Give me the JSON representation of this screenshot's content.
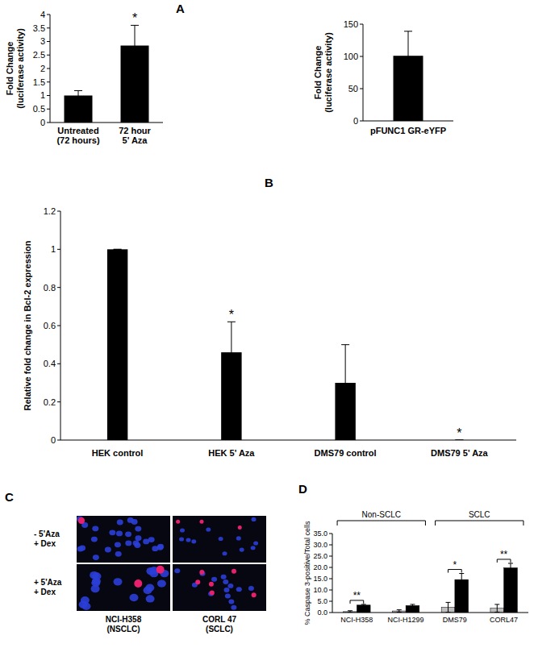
{
  "panel_labels": [
    "A",
    "B",
    "C",
    "D"
  ],
  "chart_data": [
    {
      "type": "bar",
      "categories": [
        "Untreated\n(72 hours)",
        "72 hour\n5' Aza"
      ],
      "values": [
        1.0,
        2.85
      ],
      "errors": [
        0.18,
        0.75
      ],
      "color": "#000000",
      "y_label": "Fold Change\n(luciferase activity)",
      "ylim": [
        0,
        4
      ],
      "yticks": [
        0,
        0.5,
        1,
        1.5,
        2,
        2.5,
        3,
        3.5,
        4
      ],
      "significance": [
        null,
        "*"
      ]
    },
    {
      "type": "bar",
      "categories": [
        "pFUNC1 GR-eYFP"
      ],
      "values": [
        101
      ],
      "errors": [
        38
      ],
      "color": "#000000",
      "y_label": "Fold Change\n(luciferase activity)",
      "ylim": [
        0,
        150
      ],
      "yticks": [
        0,
        50,
        100,
        150
      ],
      "significance": [
        null
      ]
    },
    {
      "type": "bar",
      "categories": [
        "HEK control",
        "HEK 5' Aza",
        "DMS79 control",
        "DMS79 5' Aza"
      ],
      "values": [
        1.0,
        0.46,
        0.3,
        0.0
      ],
      "errors": [
        0,
        0.16,
        0.2,
        0
      ],
      "color": "#000000",
      "y_label": "Relative fold change in Bcl-2 expression",
      "ylim": [
        0,
        1.2
      ],
      "yticks": [
        0,
        0.2,
        0.4,
        0.6,
        0.8,
        1,
        1.2
      ],
      "significance": [
        null,
        "*",
        null,
        "*"
      ]
    },
    {
      "type": "bar",
      "categories": [
        "NCI-H358",
        "NCI-H1299",
        "DMS79",
        "CORL47"
      ],
      "series": [
        {
          "color": "#bfbfbf",
          "values": [
            0.4,
            0.7,
            2.3,
            1.9
          ],
          "errors": [
            0.4,
            0.5,
            2.2,
            1.7
          ]
        },
        {
          "color": "#000000",
          "values": [
            3.3,
            3.1,
            14.6,
            19.8
          ],
          "errors": [
            0.3,
            0.5,
            2.7,
            2.0
          ]
        }
      ],
      "y_label": "% Caspase 3-positive/Total cells",
      "ylim": [
        0,
        35
      ],
      "yticks": [
        {
          "value": 0,
          "label": "0.0"
        },
        {
          "value": 5,
          "label": "5.0"
        },
        {
          "value": 10,
          "label": "10.0"
        },
        {
          "value": 15,
          "label": "15.0"
        },
        {
          "value": 20,
          "label": "20.0"
        },
        {
          "value": 25,
          "label": "25.0"
        },
        {
          "value": 30,
          "label": "30.0"
        },
        {
          "value": 35,
          "label": "35.0"
        }
      ],
      "significance": [
        "**",
        null,
        "*",
        "**"
      ],
      "groups": [
        {
          "label": "Non-SCLC",
          "members": [
            "NCI-H358",
            "NCI-H1299"
          ]
        },
        {
          "label": "SCLC",
          "members": [
            "DMS79",
            "CORL47"
          ]
        }
      ]
    }
  ],
  "micrographs": {
    "row_labels": [
      "- 5'Aza\n+ Dex",
      "+ 5'Aza\n+ Dex"
    ],
    "column_labels": [
      "NCI-H358\n(NSCLC)",
      "CORL 47\n(SCLC)"
    ]
  }
}
